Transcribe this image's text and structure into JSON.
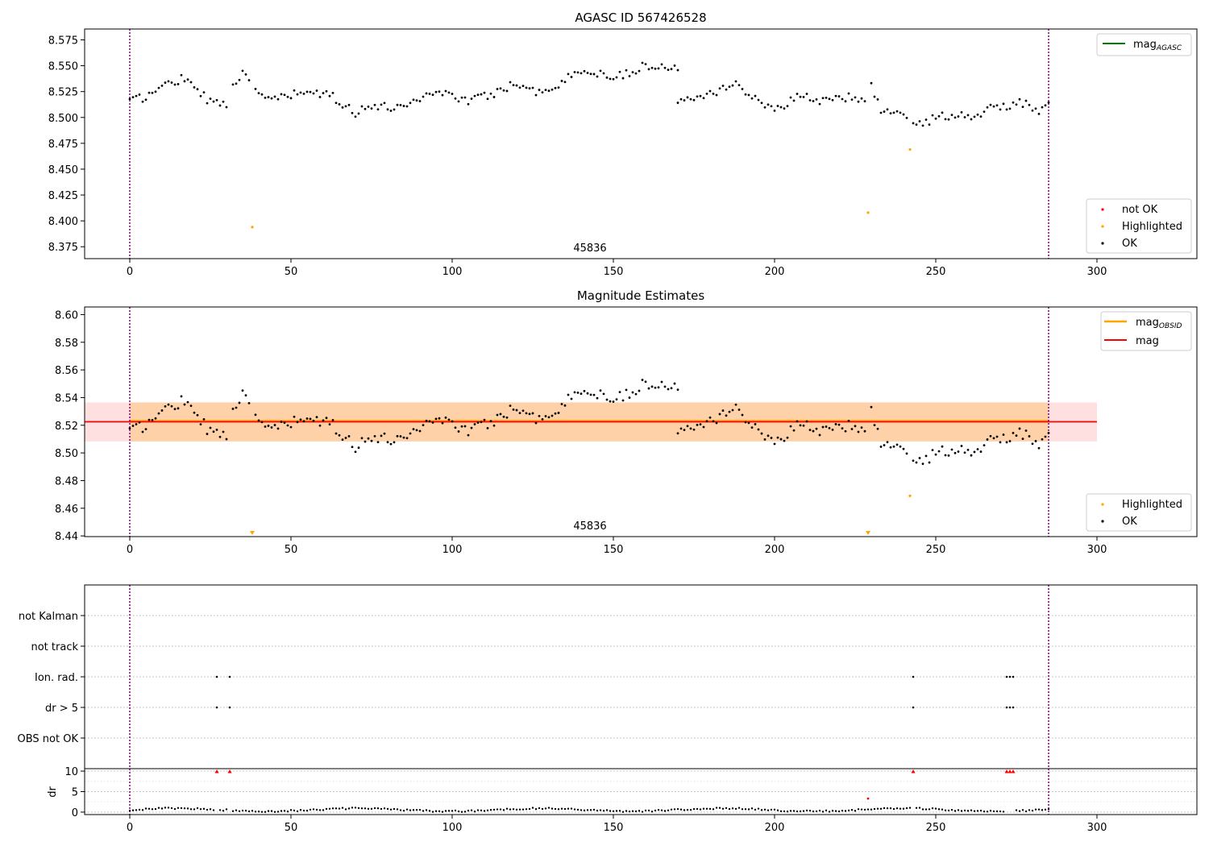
{
  "colors": {
    "ok": "#000000",
    "highlighted": "#ffa500",
    "not_ok": "#ff0000",
    "mag_agasc": "#008000",
    "mag_obsid": "#ffa500",
    "mag": "#ff0000",
    "band_obsid": "#ffa500",
    "band_mag": "#ff0000",
    "obs_boundary": "#800080",
    "grid": "#b0b0b0"
  },
  "chart_data": [
    {
      "type": "scatter",
      "title": "AGASC ID 567426528",
      "xlim": [
        -14,
        331
      ],
      "ylim": [
        8.3635,
        8.5855
      ],
      "xticks": [
        0,
        50,
        100,
        150,
        200,
        250,
        300
      ],
      "yticks": [
        8.375,
        8.4,
        8.425,
        8.45,
        8.475,
        8.5,
        8.525,
        8.55,
        8.575
      ],
      "ytick_labels": [
        "8.375",
        "8.400",
        "8.425",
        "8.450",
        "8.475",
        "8.500",
        "8.525",
        "8.550",
        "8.575"
      ],
      "obsid_annotation": "45836",
      "obsid_annotation_x": 142,
      "obs_boundaries_x": [
        0,
        285
      ],
      "legend_lines": [
        {
          "label": "mag",
          "subscript": "AGASC"
        }
      ],
      "legend_points": [
        "not OK",
        "Highlighted",
        "OK"
      ],
      "highlighted_points": [
        [
          38,
          8.394
        ],
        [
          229,
          8.408
        ],
        [
          242,
          8.469
        ]
      ],
      "not_ok_points": []
    },
    {
      "type": "scatter",
      "title": "Magnitude Estimates",
      "xlim": [
        -14,
        331
      ],
      "ylim": [
        8.4395,
        8.6055
      ],
      "xticks": [
        0,
        50,
        100,
        150,
        200,
        250,
        300
      ],
      "yticks": [
        8.44,
        8.46,
        8.48,
        8.5,
        8.52,
        8.54,
        8.56,
        8.58,
        8.6
      ],
      "ytick_labels": [
        "8.44",
        "8.46",
        "8.48",
        "8.50",
        "8.52",
        "8.54",
        "8.56",
        "8.58",
        "8.60"
      ],
      "obsid_annotation": "45836",
      "obsid_annotation_x": 142,
      "obs_boundaries_x": [
        0,
        285
      ],
      "mag_obsid": {
        "value": 8.5225,
        "band": [
          8.5083,
          8.5365
        ],
        "x_range": [
          0,
          285
        ]
      },
      "mag": {
        "value": 8.5225,
        "band": [
          8.5083,
          8.5365
        ],
        "x_range": [
          -14,
          300
        ]
      },
      "legend_lines": [
        {
          "label": "mag",
          "subscript": "OBSID"
        },
        {
          "label": "mag",
          "subscript": ""
        }
      ],
      "legend_points": [
        "Highlighted",
        "OK"
      ],
      "highlighted_points": [
        [
          242,
          8.469
        ]
      ],
      "off_scale_markers_x": [
        38,
        229
      ]
    },
    {
      "type": "scatter",
      "title": "",
      "xlim": [
        -14,
        331
      ],
      "flag_rows": [
        "not Kalman",
        "not track",
        "Ion. rad.",
        "dr > 5",
        "OBS not OK"
      ],
      "flags": {
        "Ion. rad.": [
          27,
          31,
          243,
          272,
          273,
          274
        ],
        "dr > 5": [
          27,
          31,
          243,
          272,
          273,
          274
        ]
      },
      "obs_boundaries_x": [
        0,
        285
      ]
    },
    {
      "type": "scatter",
      "ylabel": "dr",
      "xlim": [
        -14,
        331
      ],
      "ylim": [
        -0.6,
        10.6
      ],
      "xticks": [
        0,
        50,
        100,
        150,
        200,
        250,
        300
      ],
      "yticks": [
        0,
        5,
        10
      ],
      "ytick_labels": [
        "0",
        "5",
        "10"
      ],
      "obs_boundaries_x": [
        0,
        285
      ],
      "clipped_points_x": [
        27,
        31,
        243,
        272,
        273,
        274
      ],
      "highlighted_points": [
        [
          229,
          3.3
        ]
      ]
    }
  ],
  "series_seed": {
    "segments": [
      {
        "from": 0,
        "to": 30,
        "anchors": [
          [
            0,
            8.516
          ],
          [
            5,
            8.52
          ],
          [
            10,
            8.53
          ],
          [
            16,
            8.538
          ],
          [
            20,
            8.533
          ],
          [
            24,
            8.516
          ],
          [
            29,
            8.514
          ]
        ]
      },
      {
        "from": 32,
        "to": 170,
        "anchors": [
          [
            32,
            8.535
          ],
          [
            35,
            8.541
          ],
          [
            40,
            8.522
          ],
          [
            46,
            8.518
          ],
          [
            55,
            8.525
          ],
          [
            63,
            8.52
          ],
          [
            70,
            8.505
          ],
          [
            75,
            8.512
          ],
          [
            80,
            8.509
          ],
          [
            88,
            8.515
          ],
          [
            93,
            8.525
          ],
          [
            100,
            8.522
          ],
          [
            105,
            8.516
          ],
          [
            112,
            8.522
          ],
          [
            118,
            8.531
          ],
          [
            123,
            8.533
          ],
          [
            127,
            8.523
          ],
          [
            133,
            8.532
          ],
          [
            140,
            8.546
          ],
          [
            148,
            8.54
          ],
          [
            155,
            8.543
          ],
          [
            161,
            8.551
          ],
          [
            166,
            8.547
          ],
          [
            170,
            8.549
          ]
        ]
      },
      {
        "from": 170,
        "to": 285,
        "anchors": [
          [
            170,
            8.518
          ],
          [
            175,
            8.521
          ],
          [
            182,
            8.526
          ],
          [
            188,
            8.533
          ],
          [
            193,
            8.519
          ],
          [
            197,
            8.512
          ],
          [
            203,
            8.51
          ],
          [
            208,
            8.524
          ],
          [
            213,
            8.516
          ],
          [
            218,
            8.517
          ],
          [
            222,
            8.52
          ],
          [
            227,
            8.515
          ],
          [
            230,
            8.53
          ],
          [
            233,
            8.508
          ],
          [
            238,
            8.503
          ],
          [
            242,
            8.495
          ],
          [
            248,
            8.497
          ],
          [
            252,
            8.502
          ],
          [
            256,
            8.501
          ],
          [
            262,
            8.503
          ],
          [
            267,
            8.508
          ],
          [
            271,
            8.51
          ],
          [
            275,
            8.515
          ],
          [
            279,
            8.512
          ],
          [
            282,
            8.503
          ],
          [
            285,
            8.514
          ]
        ]
      }
    ]
  }
}
